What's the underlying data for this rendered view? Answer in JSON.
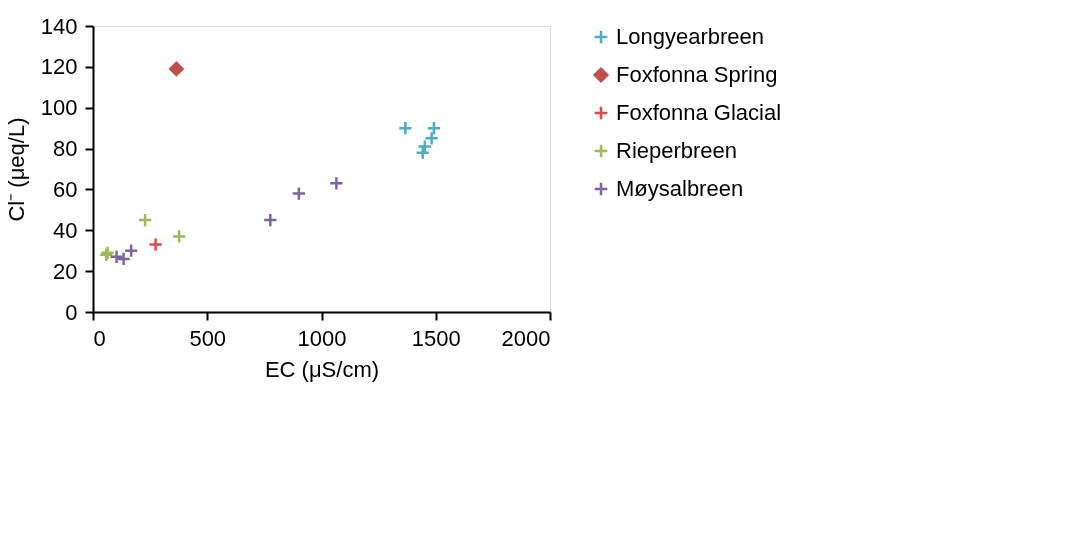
{
  "chart_data": {
    "type": "scatter",
    "xlabel": "EC (μS/cm)",
    "ylabel": "Cl⁻ (μeq/L)",
    "xlim": [
      0,
      2000
    ],
    "xticks": [
      0,
      500,
      1000,
      1500,
      2000
    ],
    "ylim": [
      0,
      140
    ],
    "yticks": [
      0,
      20,
      40,
      60,
      80,
      100,
      120,
      140
    ],
    "grid": false,
    "legend": "right",
    "series": [
      {
        "name": "Longyearbreen",
        "color": "#4bacc6",
        "marker": "cross",
        "x": [
          1367,
          1492,
          1482,
          1452,
          1443
        ],
        "values": [
          90,
          90,
          85,
          81,
          78
        ]
      },
      {
        "name": "Foxfonna Spring",
        "color": "#c0504d",
        "marker": "diamond",
        "x": [
          365
        ],
        "values": [
          119
        ]
      },
      {
        "name": "Foxfonna Glacial",
        "color": "#e0474c",
        "marker": "cross",
        "x": [
          274
        ],
        "values": [
          33
        ]
      },
      {
        "name": "Rieperbreen",
        "color": "#9bbb59",
        "marker": "cross",
        "x": [
          58,
          64,
          228,
          377
        ],
        "values": [
          28,
          29,
          45,
          37
        ]
      },
      {
        "name": "Møysalbreen",
        "color": "#8064a2",
        "marker": "cross",
        "x": [
          103,
          134,
          167,
          776,
          901,
          1065
        ],
        "values": [
          27,
          26,
          30,
          45,
          58,
          63
        ]
      }
    ]
  }
}
